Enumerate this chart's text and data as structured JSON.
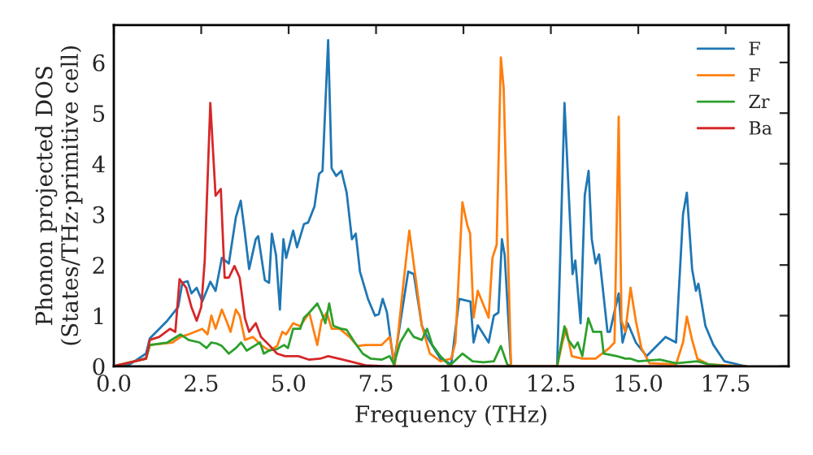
{
  "chart_data": {
    "type": "line",
    "xlabel": "Frequency (THz)",
    "ylabel": "Phonon projected DOS\n(States/THz·primitive cell)",
    "xlim": [
      0,
      19.3
    ],
    "ylim": [
      0,
      6.74
    ],
    "xticks": [
      {
        "value": 0,
        "label": "0.0"
      },
      {
        "value": 2.5,
        "label": "2.5"
      },
      {
        "value": 5,
        "label": "5.0"
      },
      {
        "value": 7.5,
        "label": "7.5"
      },
      {
        "value": 10,
        "label": "10.0"
      },
      {
        "value": 12.5,
        "label": "12.5"
      },
      {
        "value": 15,
        "label": "15.0"
      },
      {
        "value": 17.5,
        "label": "17.5"
      }
    ],
    "yticks": [
      0,
      1,
      2,
      3,
      4,
      5,
      6
    ],
    "legend": "top right",
    "grid": false,
    "line_style": "solid",
    "marker": "none",
    "series": [
      {
        "name": "F",
        "color": "#1f77b4",
        "x": [
          0,
          0.46,
          0.92,
          1.03,
          1.53,
          1.84,
          1.96,
          2.11,
          2.22,
          2.37,
          2.53,
          2.76,
          2.91,
          3.09,
          3.29,
          3.49,
          3.63,
          3.75,
          3.87,
          4.06,
          4.13,
          4.32,
          4.44,
          4.52,
          4.64,
          4.75,
          4.85,
          4.93,
          5.13,
          5.24,
          5.44,
          5.56,
          5.74,
          5.87,
          5.97,
          6.13,
          6.23,
          6.36,
          6.51,
          6.66,
          6.81,
          6.92,
          7.04,
          7.27,
          7.47,
          7.58,
          7.69,
          7.81,
          8.01,
          8.19,
          8.42,
          8.58,
          8.81,
          8.96,
          9.34,
          9.65,
          9.88,
          10.2,
          10.29,
          10.41,
          10.72,
          10.87,
          11.0,
          11.1,
          11.18,
          11.36,
          12.68,
          12.89,
          13.12,
          13.2,
          13.35,
          13.47,
          13.58,
          13.67,
          13.78,
          13.88,
          14.12,
          14.19,
          14.35,
          14.44,
          14.55,
          14.7,
          14.93,
          15.24,
          15.78,
          16.08,
          16.28,
          16.39,
          16.54,
          16.65,
          16.72,
          16.92,
          17.15,
          17.46,
          18.07
        ],
        "values": [
          0,
          0.04,
          0.25,
          0.55,
          0.9,
          1.17,
          1.65,
          1.68,
          1.44,
          1.55,
          1.28,
          1.67,
          1.49,
          2.14,
          2.03,
          2.94,
          3.27,
          2.62,
          1.92,
          2.51,
          2.57,
          1.7,
          1.65,
          2.62,
          2.19,
          1.12,
          2.51,
          2.14,
          2.68,
          2.35,
          2.81,
          2.84,
          3.16,
          3.8,
          3.86,
          6.44,
          3.91,
          3.76,
          3.86,
          3.43,
          2.51,
          2.62,
          1.87,
          1.33,
          1.0,
          1.03,
          1.33,
          1.07,
          0.04,
          0.85,
          1.87,
          1.82,
          0.8,
          0.58,
          0.15,
          0.04,
          1.33,
          1.28,
          0.47,
          0.81,
          0.47,
          1.0,
          1.06,
          2.51,
          2.19,
          0,
          0,
          5.2,
          1.82,
          2.09,
          0.85,
          3.38,
          3.86,
          2.51,
          2.03,
          2.21,
          0.68,
          0.68,
          1.17,
          1.44,
          0.47,
          0.85,
          0.47,
          0.2,
          0.58,
          0.47,
          3.0,
          3.43,
          1.92,
          1.49,
          1.63,
          0.8,
          0.42,
          0.1,
          0
        ]
      },
      {
        "name": "F",
        "color": "#ff7f0e",
        "x": [
          0,
          0.92,
          1.03,
          1.68,
          1.91,
          2.14,
          2.53,
          2.68,
          2.79,
          2.91,
          3.09,
          3.22,
          3.34,
          3.49,
          3.6,
          3.75,
          3.98,
          4.21,
          4.44,
          4.67,
          4.82,
          4.93,
          5.13,
          5.33,
          5.59,
          5.82,
          5.94,
          6.09,
          6.23,
          6.46,
          6.74,
          6.97,
          7.2,
          7.66,
          7.89,
          8.04,
          8.27,
          8.45,
          8.65,
          8.81,
          9.04,
          9.34,
          9.65,
          9.77,
          9.97,
          10.11,
          10.19,
          10.29,
          10.41,
          10.72,
          10.83,
          10.95,
          11.07,
          11.15,
          11.36,
          12.68,
          12.83,
          12.94,
          13.1,
          13.4,
          13.78,
          14.17,
          14.32,
          14.44,
          14.52,
          14.63,
          14.78,
          14.93,
          15.09,
          15.32,
          16.08,
          16.28,
          16.39,
          16.54,
          16.69,
          17.0,
          18.07
        ],
        "values": [
          0,
          0.15,
          0.42,
          0.47,
          0.58,
          0.63,
          0.74,
          0.63,
          1.0,
          0.74,
          1.12,
          0.9,
          0.68,
          1.12,
          1.0,
          0.52,
          0.58,
          0.42,
          0.31,
          0.4,
          0.68,
          0.63,
          0.85,
          0.79,
          1.06,
          0.42,
          0.9,
          1.06,
          0.74,
          0.74,
          0.58,
          0.4,
          0.42,
          0.42,
          0.58,
          0.04,
          1.55,
          2.68,
          1.66,
          0.8,
          0.25,
          0.1,
          0.15,
          0.47,
          3.24,
          2.79,
          2.62,
          0.96,
          1.49,
          0.96,
          2.14,
          2.4,
          6.1,
          5.5,
          0,
          0,
          0.47,
          0.74,
          0.2,
          0.15,
          0.15,
          0.36,
          0.47,
          4.93,
          0.9,
          0.68,
          1.55,
          0.9,
          0.36,
          0.06,
          0.04,
          0.47,
          0.98,
          0.52,
          0.15,
          0.04,
          0
        ]
      },
      {
        "name": "Zr",
        "color": "#2ca02c",
        "x": [
          0,
          0.92,
          1.03,
          1.53,
          1.91,
          2.14,
          2.45,
          2.65,
          2.79,
          2.94,
          3.09,
          3.29,
          3.49,
          3.64,
          3.8,
          4.06,
          4.18,
          4.29,
          4.44,
          4.67,
          4.87,
          4.98,
          5.13,
          5.33,
          5.44,
          5.59,
          5.82,
          5.94,
          6.05,
          6.16,
          6.28,
          6.51,
          6.66,
          6.89,
          7.12,
          7.35,
          7.66,
          7.89,
          8.01,
          8.19,
          8.42,
          8.58,
          8.81,
          8.96,
          9.11,
          9.34,
          9.57,
          9.65,
          9.97,
          10.26,
          10.57,
          10.87,
          11.07,
          11.25,
          11.36,
          12.68,
          12.89,
          13.0,
          13.17,
          13.27,
          13.4,
          13.57,
          13.71,
          13.94,
          14.01,
          14.39,
          14.63,
          14.78,
          15.0,
          15.62,
          16.08,
          16.69,
          17.0,
          17.46,
          18.07
        ],
        "values": [
          0,
          0.15,
          0.42,
          0.47,
          0.63,
          0.52,
          0.47,
          0.36,
          0.47,
          0.45,
          0.4,
          0.25,
          0.36,
          0.47,
          0.31,
          0.42,
          0.47,
          0.25,
          0.31,
          0.34,
          0.42,
          0.36,
          0.74,
          0.74,
          0.96,
          1.06,
          1.24,
          1.06,
          0.85,
          1.24,
          0.8,
          0.74,
          0.72,
          0.47,
          0.25,
          0.15,
          0.13,
          0.2,
          0.04,
          0.47,
          0.74,
          0.58,
          0.52,
          0.74,
          0.42,
          0.2,
          0.04,
          0.04,
          0.25,
          0.1,
          0.08,
          0.1,
          0.4,
          0.04,
          0,
          0,
          0.79,
          0.52,
          0.36,
          0.47,
          0.2,
          0.95,
          0.68,
          0.68,
          0.25,
          0.2,
          0.15,
          0.15,
          0.1,
          0.13,
          0.06,
          0.1,
          0.04,
          0.01,
          0
        ]
      },
      {
        "name": "Ba",
        "color": "#d62728",
        "x": [
          0,
          0.92,
          1.03,
          1.3,
          1.61,
          1.76,
          1.88,
          2.07,
          2.22,
          2.37,
          2.5,
          2.6,
          2.76,
          2.91,
          3.06,
          3.17,
          3.29,
          3.45,
          3.6,
          3.75,
          3.87,
          4.06,
          4.21,
          4.44,
          4.67,
          4.9,
          5.28,
          5.59,
          5.9,
          6.13,
          6.43,
          6.74,
          7.2,
          7.81,
          18.07
        ],
        "values": [
          0,
          0.15,
          0.52,
          0.58,
          0.74,
          0.68,
          1.72,
          1.55,
          1.17,
          0.9,
          1.17,
          2.08,
          5.2,
          3.37,
          3.5,
          1.75,
          1.75,
          1.98,
          1.75,
          0.95,
          0.68,
          0.85,
          0.58,
          0.42,
          0.25,
          0.2,
          0.2,
          0.13,
          0.15,
          0.2,
          0.15,
          0.1,
          0.02,
          0,
          0
        ]
      }
    ]
  }
}
